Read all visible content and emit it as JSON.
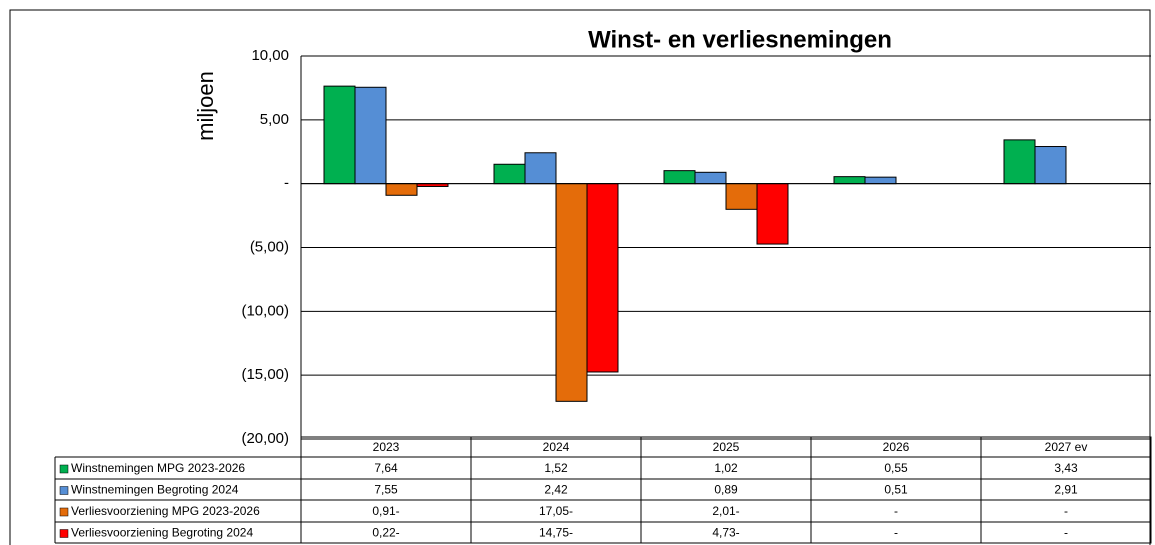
{
  "chart_data": {
    "type": "bar",
    "title": "Winst- en verliesnemingen",
    "ylabel": "miljoen",
    "categories": [
      "2023",
      "2024",
      "2025",
      "2026",
      "2027 ev"
    ],
    "series": [
      {
        "name": "Winstnemingen MPG 2023-2026",
        "color": "#00b050",
        "values": [
          7.64,
          1.52,
          1.02,
          0.55,
          3.43
        ],
        "value_labels": [
          "7,64",
          "1,52",
          "1,02",
          "0,55",
          "3,43"
        ]
      },
      {
        "name": "Winstnemingen Begroting 2024",
        "color": "#558ed5",
        "values": [
          7.55,
          2.42,
          0.89,
          0.51,
          2.91
        ],
        "value_labels": [
          "7,55",
          "2,42",
          "0,89",
          "0,51",
          "2,91"
        ]
      },
      {
        "name": "Verliesvoorziening MPG 2023-2026",
        "color": "#e46c0a",
        "values": [
          -0.91,
          -17.05,
          -2.01,
          0,
          0
        ],
        "value_labels": [
          "0,91-",
          "17,05-",
          "2,01-",
          "-",
          "-"
        ]
      },
      {
        "name": "Verliesvoorziening Begroting 2024",
        "color": "#ff0000",
        "values": [
          -0.22,
          -14.75,
          -4.73,
          0,
          0
        ],
        "value_labels": [
          "0,22-",
          "14,75-",
          "4,73-",
          "-",
          "-"
        ]
      }
    ],
    "ylim": [
      -20,
      10
    ],
    "yticks": [
      {
        "value": 10,
        "label": "10,00"
      },
      {
        "value": 5,
        "label": "5,00"
      },
      {
        "value": 0,
        "label": "-"
      },
      {
        "value": -5,
        "label": "(5,00)"
      },
      {
        "value": -10,
        "label": "(10,00)"
      },
      {
        "value": -15,
        "label": "(15,00)"
      },
      {
        "value": -20,
        "label": "(20,00)"
      }
    ],
    "grid": true
  }
}
